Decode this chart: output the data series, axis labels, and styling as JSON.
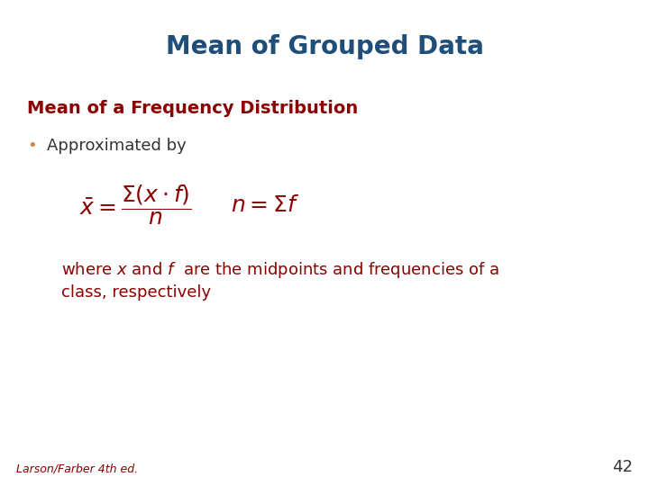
{
  "title": "Mean of Grouped Data",
  "title_color": "#1F4E79",
  "title_fontsize": 20,
  "subtitle": "Mean of a Frequency Distribution",
  "subtitle_color": "#8B0000",
  "subtitle_fontsize": 14,
  "bullet_text": "Approximated by",
  "bullet_color": "#333333",
  "bullet_fontsize": 13,
  "bullet_marker": "•",
  "bullet_marker_color": "#CC8844",
  "formula_color": "#8B0000",
  "formula_fontsize": 16,
  "description_color": "#8B0000",
  "description_fontsize": 13,
  "footer_text": "Larson/Farber 4th ed.",
  "footer_color": "#8B0000",
  "footer_fontsize": 9,
  "page_number": "42",
  "page_number_color": "#333333",
  "page_number_fontsize": 13,
  "background_color": "#FFFFFF"
}
